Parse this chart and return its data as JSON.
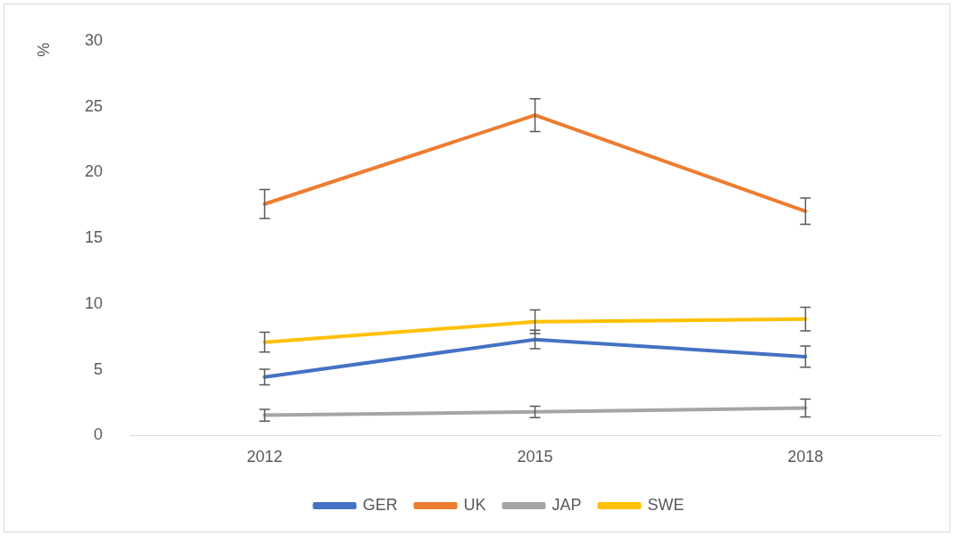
{
  "chart_data": {
    "type": "line",
    "ylabel": "%",
    "categories": [
      "2012",
      "2015",
      "2018"
    ],
    "series": [
      {
        "name": "GER",
        "color": "#4472c4",
        "values": [
          4.45,
          7.3,
          6.0
        ],
        "errors": [
          0.6,
          0.7,
          0.8
        ]
      },
      {
        "name": "UK",
        "color": "#ed7d31",
        "values": [
          17.6,
          24.35,
          17.05
        ],
        "errors": [
          1.1,
          1.25,
          1.0
        ]
      },
      {
        "name": "JAP",
        "color": "#a5a5a5",
        "values": [
          1.55,
          1.8,
          2.1
        ],
        "errors": [
          0.45,
          0.43,
          0.68
        ]
      },
      {
        "name": "SWE",
        "color": "#ffc000",
        "values": [
          7.1,
          8.65,
          8.85
        ],
        "errors": [
          0.75,
          0.9,
          0.9
        ]
      }
    ],
    "ylim": [
      0,
      30
    ],
    "yticks": [
      0,
      5,
      10,
      15,
      20,
      25,
      30
    ],
    "grid": false,
    "legend": "bottom",
    "line_style": "solid"
  }
}
